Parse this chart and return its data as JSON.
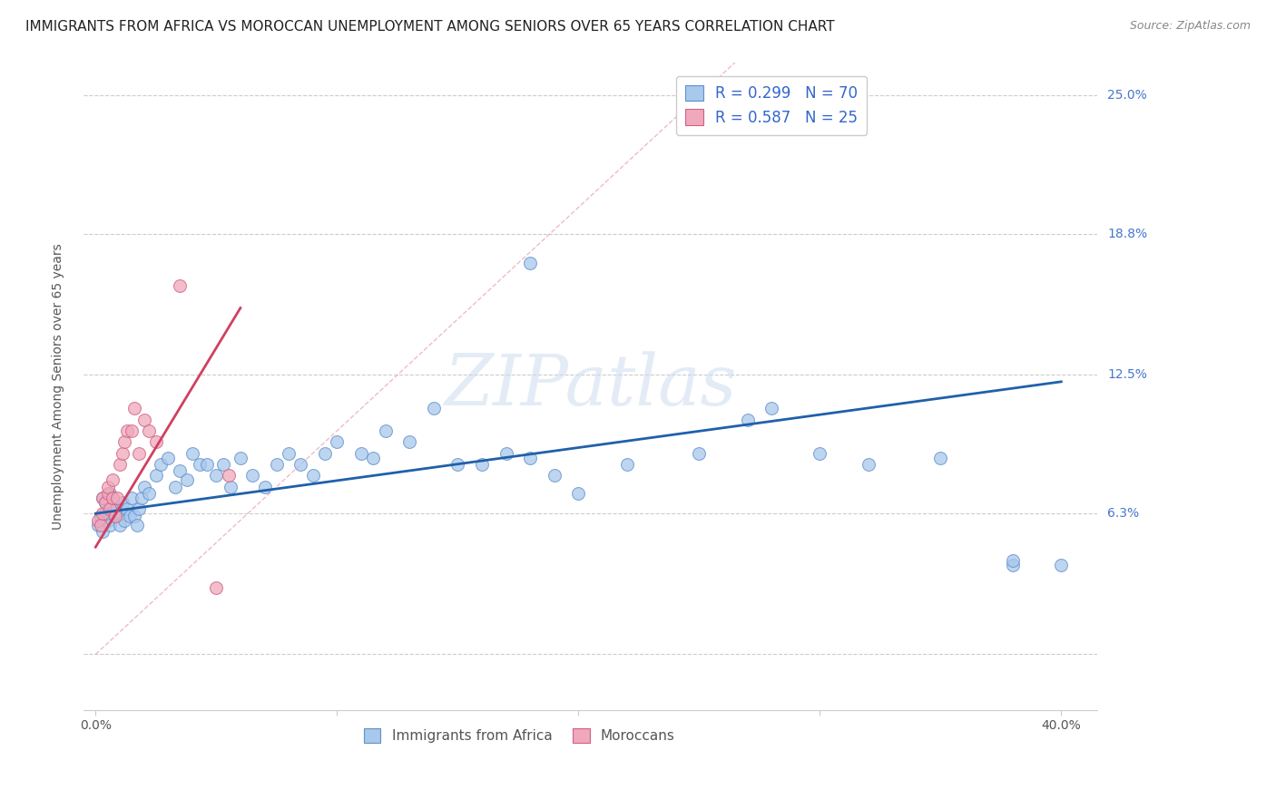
{
  "title": "IMMIGRANTS FROM AFRICA VS MOROCCAN UNEMPLOYMENT AMONG SENIORS OVER 65 YEARS CORRELATION CHART",
  "source": "Source: ZipAtlas.com",
  "ylabel": "Unemployment Among Seniors over 65 years",
  "yticks": [
    0.0,
    0.063,
    0.125,
    0.188,
    0.25
  ],
  "ytick_labels": [
    "",
    "6.3%",
    "12.5%",
    "18.8%",
    "25.0%"
  ],
  "xmin": -0.005,
  "xmax": 0.415,
  "ymin": -0.025,
  "ymax": 0.265,
  "blue_color": "#a8c8ec",
  "pink_color": "#f0a8bc",
  "blue_edge_color": "#6090cc",
  "pink_edge_color": "#d06080",
  "blue_line_color": "#2060aa",
  "pink_line_color": "#d04060",
  "legend_label_blue": "R = 0.299   N = 70",
  "legend_label_pink": "R = 0.587   N = 25",
  "legend_text_color": "#3366cc",
  "watermark": "ZIPatlas",
  "blue_scatter_x": [
    0.001,
    0.002,
    0.003,
    0.003,
    0.004,
    0.004,
    0.005,
    0.005,
    0.006,
    0.006,
    0.007,
    0.007,
    0.008,
    0.009,
    0.01,
    0.01,
    0.011,
    0.012,
    0.013,
    0.014,
    0.015,
    0.016,
    0.017,
    0.018,
    0.019,
    0.02,
    0.022,
    0.025,
    0.027,
    0.03,
    0.033,
    0.035,
    0.038,
    0.04,
    0.043,
    0.046,
    0.05,
    0.053,
    0.056,
    0.06,
    0.065,
    0.07,
    0.075,
    0.08,
    0.085,
    0.09,
    0.095,
    0.1,
    0.11,
    0.115,
    0.12,
    0.13,
    0.14,
    0.15,
    0.16,
    0.17,
    0.18,
    0.19,
    0.2,
    0.22,
    0.25,
    0.28,
    0.3,
    0.32,
    0.35,
    0.38,
    0.38,
    0.4,
    0.18,
    0.27
  ],
  "blue_scatter_y": [
    0.058,
    0.062,
    0.055,
    0.07,
    0.063,
    0.068,
    0.06,
    0.065,
    0.058,
    0.072,
    0.065,
    0.07,
    0.062,
    0.066,
    0.058,
    0.063,
    0.068,
    0.06,
    0.065,
    0.062,
    0.07,
    0.062,
    0.058,
    0.065,
    0.07,
    0.075,
    0.072,
    0.08,
    0.085,
    0.088,
    0.075,
    0.082,
    0.078,
    0.09,
    0.085,
    0.085,
    0.08,
    0.085,
    0.075,
    0.088,
    0.08,
    0.075,
    0.085,
    0.09,
    0.085,
    0.08,
    0.09,
    0.095,
    0.09,
    0.088,
    0.1,
    0.095,
    0.11,
    0.085,
    0.085,
    0.09,
    0.088,
    0.08,
    0.072,
    0.085,
    0.09,
    0.11,
    0.09,
    0.085,
    0.088,
    0.04,
    0.042,
    0.04,
    0.175,
    0.105
  ],
  "pink_scatter_x": [
    0.001,
    0.002,
    0.003,
    0.003,
    0.004,
    0.005,
    0.005,
    0.006,
    0.007,
    0.007,
    0.008,
    0.009,
    0.01,
    0.011,
    0.012,
    0.013,
    0.015,
    0.016,
    0.018,
    0.02,
    0.022,
    0.025,
    0.035,
    0.05,
    0.055
  ],
  "pink_scatter_y": [
    0.06,
    0.058,
    0.063,
    0.07,
    0.068,
    0.072,
    0.075,
    0.065,
    0.07,
    0.078,
    0.062,
    0.07,
    0.085,
    0.09,
    0.095,
    0.1,
    0.1,
    0.11,
    0.09,
    0.105,
    0.1,
    0.095,
    0.165,
    0.03,
    0.08
  ],
  "blue_trend_x": [
    0.0,
    0.4
  ],
  "blue_trend_y": [
    0.063,
    0.122
  ],
  "pink_trend_x": [
    0.0,
    0.06
  ],
  "pink_trend_y": [
    0.048,
    0.155
  ],
  "diag_line_x": [
    0.0,
    0.265
  ],
  "diag_line_y": [
    0.0,
    0.265
  ],
  "grid_color": "#cccccc",
  "title_fontsize": 11,
  "source_fontsize": 9,
  "ylabel_fontsize": 10,
  "tick_fontsize": 10,
  "legend_fontsize": 12
}
